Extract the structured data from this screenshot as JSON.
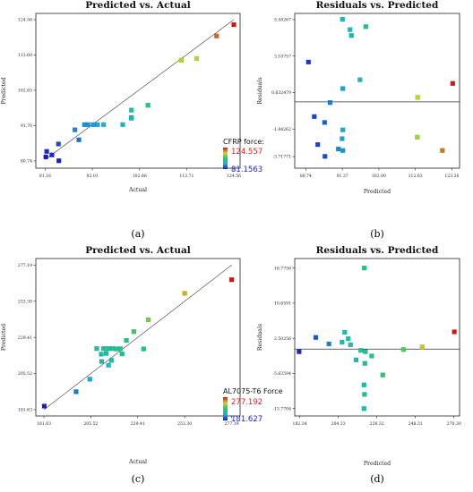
{
  "chart_data": [
    {
      "panel": "a",
      "type": "scatter",
      "title": "Predicted vs. Actual",
      "xlabel": "Actual",
      "ylabel": "Predicted",
      "caption": "(a)",
      "xticks": [
        "81.16",
        "92.01",
        "102.86",
        "113.71",
        "124.56"
      ],
      "yticks": [
        "80.74",
        "91.70",
        "102.65",
        "113.60",
        "124.56"
      ],
      "xlim": [
        79.0,
        126.0
      ],
      "ylim": [
        78.5,
        126.5
      ],
      "reference_line": [
        [
          81.16,
          81.16
        ],
        [
          124.56,
          124.56
        ]
      ],
      "colorbar": {
        "label": "CFRP force:",
        "max": "124.557",
        "min": "81.1563",
        "range": [
          81.1563,
          124.557
        ]
      },
      "points": [
        {
          "x": 124.56,
          "y": 123.0,
          "v": 124.557
        },
        {
          "x": 120.6,
          "y": 119.5,
          "v": 120.0
        },
        {
          "x": 116.0,
          "y": 112.5,
          "v": 113.0
        },
        {
          "x": 112.5,
          "y": 112.0,
          "v": 112.0
        },
        {
          "x": 104.8,
          "y": 98.0,
          "v": 101.0
        },
        {
          "x": 101.0,
          "y": 96.5,
          "v": 97.0
        },
        {
          "x": 101.0,
          "y": 94.2,
          "v": 96.0
        },
        {
          "x": 101.0,
          "y": 94.0,
          "v": 95.0
        },
        {
          "x": 99.0,
          "y": 92.0,
          "v": 93.5
        },
        {
          "x": 94.6,
          "y": 92.0,
          "v": 92.0
        },
        {
          "x": 93.2,
          "y": 92.0,
          "v": 91.0
        },
        {
          "x": 92.2,
          "y": 92.0,
          "v": 90.5
        },
        {
          "x": 91.0,
          "y": 92.0,
          "v": 90.0
        },
        {
          "x": 90.2,
          "y": 92.0,
          "v": 89.5
        },
        {
          "x": 88.9,
          "y": 87.3,
          "v": 87.5
        },
        {
          "x": 88.0,
          "y": 90.4,
          "v": 88.5
        },
        {
          "x": 84.2,
          "y": 86.0,
          "v": 84.5
        },
        {
          "x": 81.5,
          "y": 83.7,
          "v": 82.5
        },
        {
          "x": 82.7,
          "y": 82.6,
          "v": 82.0
        },
        {
          "x": 84.3,
          "y": 80.8,
          "v": 81.3
        },
        {
          "x": 81.3,
          "y": 82.0,
          "v": 81.1563
        }
      ]
    },
    {
      "panel": "b",
      "type": "scatter",
      "title": "Residuals vs. Predicted",
      "xlabel": "Predicted",
      "ylabel": "Residuals",
      "caption": "(b)",
      "xticks": [
        "80.74",
        "91.37",
        "102.00",
        "112.63",
        "123.26"
      ],
      "yticks": [
        "5.58267",
        "3.10757",
        "0.632479",
        "-1.84262",
        "-3.71771"
      ],
      "xlim": [
        77.5,
        125.5
      ],
      "ylim": [
        -4.5,
        6.0
      ],
      "zero_line": 0,
      "points": [
        {
          "x": 91.4,
          "y": 5.6,
          "v": 96.0
        },
        {
          "x": 98.2,
          "y": 5.1,
          "v": 99.0
        },
        {
          "x": 93.6,
          "y": 4.9,
          "v": 95.0
        },
        {
          "x": 94.0,
          "y": 4.5,
          "v": 95.5
        },
        {
          "x": 81.5,
          "y": 2.7,
          "v": 83.0
        },
        {
          "x": 96.5,
          "y": 1.5,
          "v": 96.0
        },
        {
          "x": 123.5,
          "y": 1.25,
          "v": 124.557
        },
        {
          "x": 91.5,
          "y": 0.9,
          "v": 91.0
        },
        {
          "x": 113.3,
          "y": 0.3,
          "v": 113.0
        },
        {
          "x": 87.8,
          "y": -0.05,
          "v": 88.0
        },
        {
          "x": 83.2,
          "y": -1.0,
          "v": 84.0
        },
        {
          "x": 86.2,
          "y": -1.4,
          "v": 86.0
        },
        {
          "x": 91.5,
          "y": -1.9,
          "v": 91.5
        },
        {
          "x": 91.3,
          "y": -2.5,
          "v": 91.0
        },
        {
          "x": 113.2,
          "y": -2.4,
          "v": 111.0
        },
        {
          "x": 84.2,
          "y": -2.9,
          "v": 84.0
        },
        {
          "x": 90.2,
          "y": -3.2,
          "v": 89.0
        },
        {
          "x": 91.5,
          "y": -3.3,
          "v": 90.0
        },
        {
          "x": 120.5,
          "y": -3.3,
          "v": 119.0
        },
        {
          "x": 86.3,
          "y": -3.7,
          "v": 84.5
        }
      ]
    },
    {
      "panel": "c",
      "type": "scatter",
      "title": "Predicted vs. Actual",
      "xlabel": "Actual",
      "ylabel": "Predicted",
      "caption": "(c)",
      "xticks": [
        "181.63",
        "205.52",
        "229.41",
        "253.30",
        "277.19"
      ],
      "yticks": [
        "181.63",
        "205.52",
        "229.41",
        "253.30",
        "277.19"
      ],
      "xlim": [
        177.5,
        281.5
      ],
      "ylim": [
        177.5,
        281.5
      ],
      "reference_line": [
        [
          181.63,
          181.63
        ],
        [
          277.19,
          277.19
        ]
      ],
      "colorbar": {
        "label": "AL7075-T6 Force",
        "max": "277.192",
        "min": "181.627",
        "range": [
          181.627,
          277.192
        ]
      },
      "points": [
        {
          "x": 277.19,
          "y": 267.5,
          "v": 277.192
        },
        {
          "x": 253.3,
          "y": 258.5,
          "v": 258.0
        },
        {
          "x": 234.8,
          "y": 241.0,
          "v": 240.0
        },
        {
          "x": 227.4,
          "y": 233.2,
          "v": 232.0
        },
        {
          "x": 232.4,
          "y": 221.8,
          "v": 228.0
        },
        {
          "x": 223.6,
          "y": 227.4,
          "v": 225.0
        },
        {
          "x": 220.5,
          "y": 221.9,
          "v": 222.0
        },
        {
          "x": 218.5,
          "y": 221.8,
          "v": 221.0
        },
        {
          "x": 216.5,
          "y": 222.0,
          "v": 220.0
        },
        {
          "x": 214.4,
          "y": 222.0,
          "v": 219.0
        },
        {
          "x": 212.0,
          "y": 222.0,
          "v": 218.0
        },
        {
          "x": 208.5,
          "y": 222.0,
          "v": 217.0
        },
        {
          "x": 213.3,
          "y": 218.8,
          "v": 216.0
        },
        {
          "x": 221.4,
          "y": 218.5,
          "v": 219.0
        },
        {
          "x": 210.8,
          "y": 218.3,
          "v": 215.0
        },
        {
          "x": 211.0,
          "y": 213.5,
          "v": 214.0
        },
        {
          "x": 216.0,
          "y": 214.2,
          "v": 215.0
        },
        {
          "x": 214.5,
          "y": 211.0,
          "v": 213.0
        },
        {
          "x": 205.0,
          "y": 201.8,
          "v": 204.0
        },
        {
          "x": 198.0,
          "y": 193.5,
          "v": 197.0
        },
        {
          "x": 181.8,
          "y": 184.0,
          "v": 181.627
        }
      ]
    },
    {
      "panel": "d",
      "type": "scatter",
      "title": "Residuals vs. Predicted",
      "xlabel": "Predicted",
      "ylabel": "Residuals",
      "caption": "(d)",
      "xticks": [
        "182.34",
        "204.33",
        "226.32",
        "248.31",
        "270.30"
      ],
      "yticks": [
        "18.7756",
        "10.6591",
        "2.50256",
        "-5.63594",
        "-13.7704"
      ],
      "xlim": [
        179.5,
        273.5
      ],
      "ylim": [
        -15.5,
        21.0
      ],
      "zero_line": 0,
      "points": [
        {
          "x": 219.2,
          "y": 18.8,
          "v": 222.0
        },
        {
          "x": 270.5,
          "y": 4.0,
          "v": 277.192
        },
        {
          "x": 208.0,
          "y": 3.9,
          "v": 214.0
        },
        {
          "x": 191.5,
          "y": 2.7,
          "v": 192.0
        },
        {
          "x": 210.0,
          "y": 2.4,
          "v": 214.0
        },
        {
          "x": 206.5,
          "y": 1.6,
          "v": 212.0
        },
        {
          "x": 199.0,
          "y": 1.2,
          "v": 198.0
        },
        {
          "x": 211.3,
          "y": 1.0,
          "v": 215.0
        },
        {
          "x": 241.5,
          "y": -0.1,
          "v": 235.0
        },
        {
          "x": 252.2,
          "y": 0.5,
          "v": 255.0
        },
        {
          "x": 217.2,
          "y": -0.3,
          "v": 219.0
        },
        {
          "x": 219.8,
          "y": -0.6,
          "v": 220.0
        },
        {
          "x": 182.0,
          "y": -0.6,
          "v": 183.0
        },
        {
          "x": 223.4,
          "y": -1.6,
          "v": 224.0
        },
        {
          "x": 214.5,
          "y": -2.5,
          "v": 216.0
        },
        {
          "x": 219.5,
          "y": -3.3,
          "v": 220.0
        },
        {
          "x": 229.7,
          "y": -6.0,
          "v": 229.0
        },
        {
          "x": 219.0,
          "y": -8.3,
          "v": 218.0
        },
        {
          "x": 219.3,
          "y": -10.5,
          "v": 219.0
        },
        {
          "x": 219.0,
          "y": -13.8,
          "v": 218.5
        }
      ]
    }
  ]
}
